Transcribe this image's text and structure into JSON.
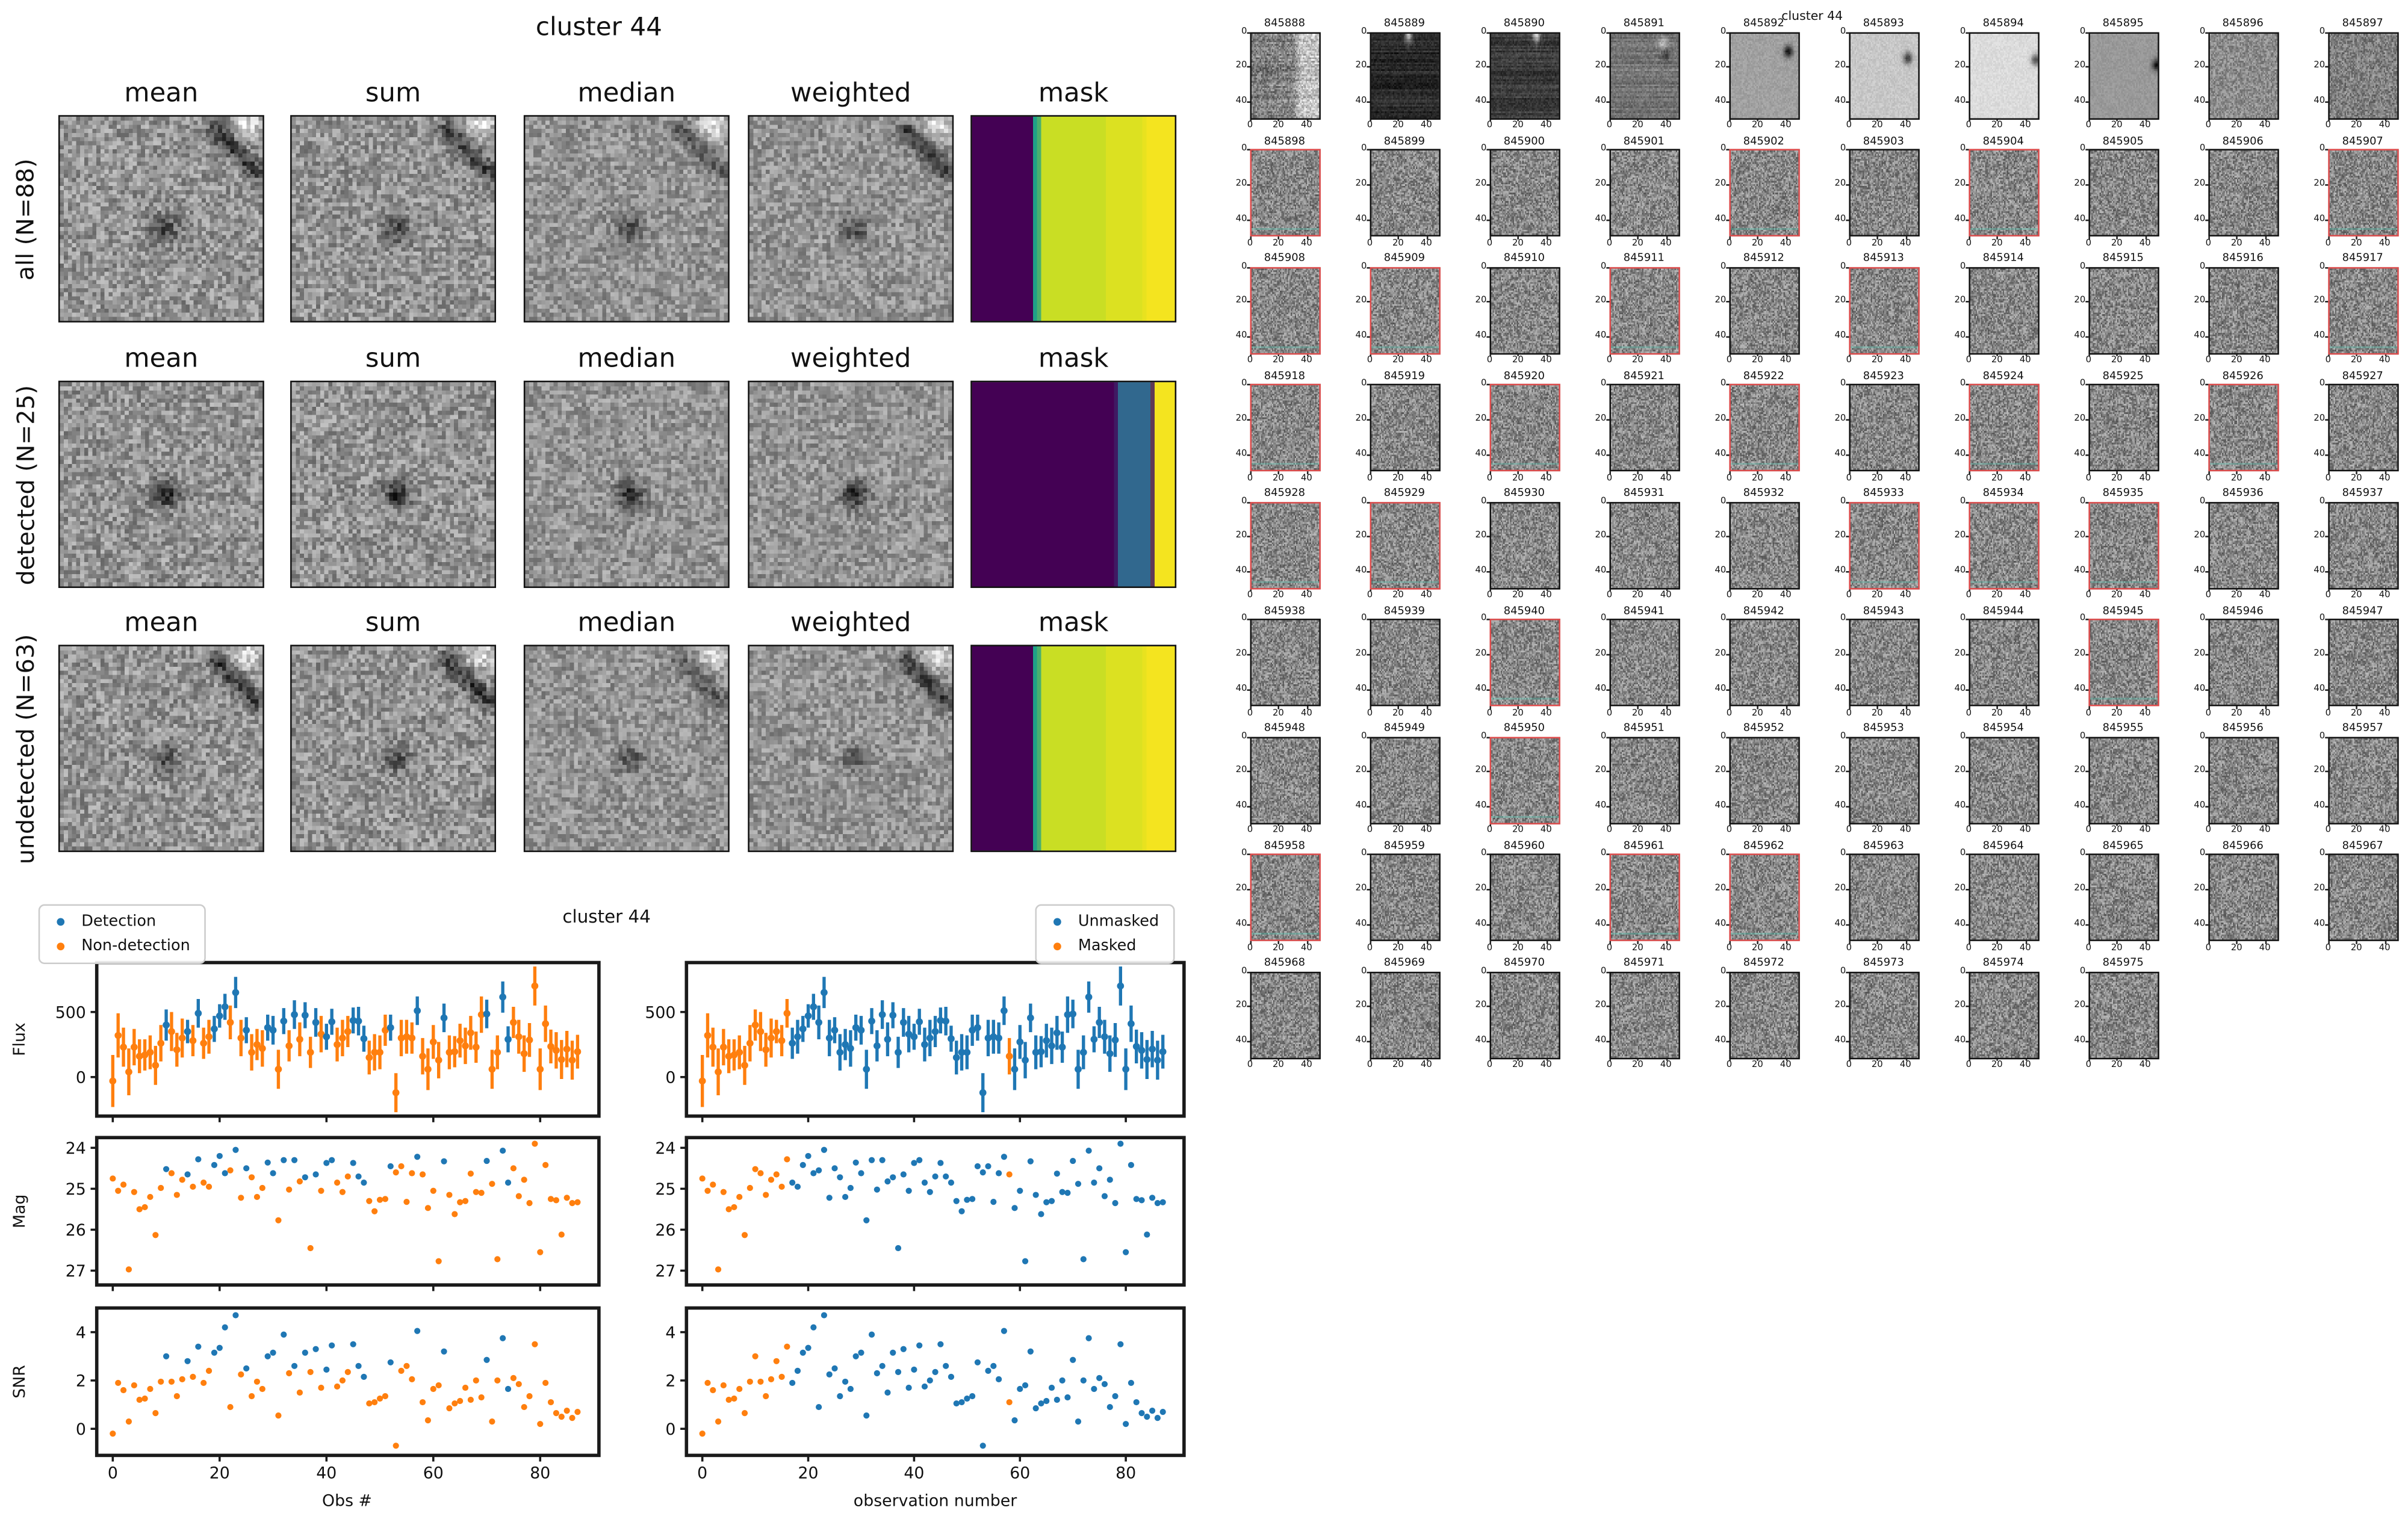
{
  "left_figure": {
    "title": "cluster 44",
    "col_headers": [
      "mean",
      "sum",
      "median",
      "weighted",
      "mask"
    ],
    "rows": [
      {
        "label": "all (N=88)"
      },
      {
        "label": "detected (N=25)"
      },
      {
        "label": "undetected (N=63)"
      }
    ],
    "masks": [
      [
        {
          "color": "#440154",
          "frac": 0.3
        },
        {
          "color": "#1fa187",
          "frac": 0.035
        },
        {
          "color": "#c9de24",
          "frac": 0.325
        },
        {
          "color": "#dce121",
          "frac": 0.19
        },
        {
          "color": "#f4e41f",
          "frac": 0.15
        }
      ],
      [
        {
          "color": "#440154",
          "frac": 0.715
        },
        {
          "color": "#31688e",
          "frac": 0.17
        },
        {
          "color": "#440154",
          "frac": 0.012
        },
        {
          "color": "#f4e41f",
          "frac": 0.103
        }
      ],
      [
        {
          "color": "#440154",
          "frac": 0.3
        },
        {
          "color": "#1fa187",
          "frac": 0.035
        },
        {
          "color": "#c9de24",
          "frac": 0.325
        },
        {
          "color": "#dce121",
          "frac": 0.19
        },
        {
          "color": "#f4e41f",
          "frac": 0.15
        }
      ]
    ]
  },
  "scatter_figure": {
    "title": "cluster 44",
    "xlabel_left": "Obs #",
    "xlabel_right": "observation number",
    "ylabels": [
      "Flux",
      "Mag",
      "SNR"
    ],
    "colors": {
      "blue": "#1f77b4",
      "orange": "#ff7f0e"
    },
    "legend_left": [
      {
        "label": "Detection",
        "color": "#1f77b4"
      },
      {
        "label": "Non-detection",
        "color": "#ff7f0e"
      }
    ],
    "legend_right": [
      {
        "label": "Unmasked",
        "color": "#1f77b4"
      },
      {
        "label": "Masked",
        "color": "#ff7f0e"
      }
    ]
  },
  "chart_data": {
    "type": "scatter",
    "n": 88,
    "x_is_index": true,
    "xlim": [
      -3,
      91
    ],
    "xticks": [
      0,
      20,
      40,
      60,
      80
    ],
    "panels": [
      {
        "name": "Flux",
        "yticks": [
          0,
          500
        ],
        "ylim": [
          -300,
          880
        ],
        "style": "errorbar"
      },
      {
        "name": "Mag",
        "yticks": [
          24,
          25,
          26,
          27
        ],
        "ylim": [
          23.75,
          27.35
        ],
        "inverted": true,
        "style": "dots"
      },
      {
        "name": "SNR",
        "yticks": [
          0,
          2,
          4
        ],
        "ylim": [
          -1.1,
          5.0
        ],
        "style": "dots"
      }
    ],
    "figures": [
      {
        "side": "left",
        "color_by": "detection",
        "xlabel": "Obs #",
        "legend": [
          "Detection",
          "Non-detection"
        ]
      },
      {
        "side": "right",
        "color_by": "mask",
        "xlabel": "observation number",
        "legend": [
          "Unmasked",
          "Masked"
        ]
      }
    ],
    "flux": [
      -30,
      320,
      230,
      40,
      230,
      160,
      170,
      190,
      90,
      260,
      400,
      350,
      210,
      300,
      350,
      280,
      490,
      260,
      310,
      370,
      470,
      540,
      420,
      650,
      300,
      360,
      190,
      250,
      220,
      380,
      360,
      60,
      430,
      240,
      480,
      290,
      475,
      190,
      420,
      330,
      310,
      425,
      250,
      300,
      350,
      435,
      430,
      295,
      150,
      190,
      190,
      360,
      380,
      -120,
      300,
      310,
      300,
      510,
      160,
      60,
      270,
      130,
      455,
      190,
      195,
      280,
      240,
      340,
      230,
      480,
      485,
      60,
      190,
      615,
      290,
      420,
      310,
      180,
      285,
      700,
      60,
      410,
      235,
      205,
      135,
      215,
      130,
      195
    ],
    "flux_err": [
      200,
      170,
      150,
      180,
      140,
      130,
      120,
      130,
      150,
      140,
      120,
      150,
      130,
      150,
      90,
      120,
      110,
      120,
      130,
      100,
      90,
      100,
      130,
      120,
      140,
      100,
      140,
      120,
      140,
      100,
      110,
      150,
      100,
      120,
      110,
      130,
      100,
      120,
      110,
      140,
      100,
      100,
      130,
      140,
      120,
      100,
      110,
      100,
      130,
      140,
      130,
      120,
      100,
      150,
      140,
      130,
      120,
      110,
      140,
      160,
      130,
      140,
      110,
      130,
      120,
      130,
      140,
      130,
      120,
      140,
      110,
      150,
      130,
      120,
      100,
      120,
      130,
      140,
      130,
      150,
      160,
      140,
      130,
      140,
      150,
      140,
      150,
      130
    ],
    "mag": [
      24.75,
      25.05,
      24.9,
      26.97,
      25.08,
      25.5,
      25.45,
      25.2,
      26.13,
      24.98,
      24.52,
      24.62,
      25.15,
      24.78,
      24.65,
      24.95,
      24.28,
      24.85,
      24.95,
      24.42,
      24.2,
      24.62,
      24.55,
      24.05,
      25.22,
      24.5,
      24.72,
      25.2,
      24.98,
      24.36,
      24.62,
      25.77,
      24.3,
      25.02,
      24.3,
      24.82,
      24.72,
      26.45,
      24.65,
      25.05,
      24.37,
      24.3,
      24.85,
      25.08,
      24.7,
      24.37,
      24.7,
      24.85,
      25.3,
      25.55,
      25.27,
      25.25,
      24.45,
      24.6,
      24.45,
      25.32,
      24.62,
      24.22,
      24.65,
      25.47,
      25.05,
      26.77,
      24.33,
      25.15,
      25.62,
      25.33,
      25.3,
      24.63,
      25.08,
      25.1,
      24.32,
      24.88,
      26.72,
      24.07,
      24.85,
      24.5,
      25.18,
      24.78,
      25.35,
      23.9,
      26.55,
      24.42,
      25.25,
      25.28,
      26.12,
      25.22,
      25.35,
      25.33
    ],
    "snr": [
      -0.2,
      1.9,
      1.6,
      0.3,
      1.8,
      1.2,
      1.25,
      1.65,
      0.65,
      1.95,
      3.0,
      1.95,
      1.35,
      2.05,
      2.8,
      2.15,
      3.4,
      1.9,
      2.4,
      3.15,
      3.35,
      4.2,
      0.9,
      4.7,
      2.25,
      2.5,
      1.35,
      1.95,
      1.65,
      3.0,
      3.15,
      0.55,
      3.9,
      2.3,
      2.6,
      1.5,
      3.15,
      2.35,
      3.3,
      1.7,
      2.45,
      3.45,
      1.75,
      2.0,
      2.35,
      3.5,
      2.6,
      2.15,
      1.05,
      1.1,
      1.25,
      1.35,
      2.75,
      -0.7,
      2.4,
      2.6,
      2.05,
      4.05,
      1.1,
      0.35,
      1.65,
      1.8,
      3.2,
      0.85,
      1.05,
      1.15,
      1.7,
      1.2,
      2.0,
      1.3,
      2.85,
      0.3,
      2.0,
      3.75,
      1.65,
      2.1,
      1.85,
      0.9,
      1.35,
      3.5,
      0.2,
      1.9,
      1.1,
      0.65,
      0.5,
      0.75,
      0.45,
      0.7
    ],
    "detected_idx": [
      10,
      14,
      16,
      19,
      20,
      21,
      23,
      25,
      29,
      30,
      32,
      34,
      36,
      38,
      40,
      41,
      45,
      46,
      47,
      52,
      57,
      62,
      70,
      73,
      74
    ],
    "masked_idx": [
      0,
      1,
      2,
      3,
      4,
      5,
      6,
      7,
      8,
      9,
      10,
      11,
      12,
      13,
      14,
      15,
      16,
      58
    ]
  },
  "thumbs_figure": {
    "title": "cluster 44",
    "tick_labels": [
      "0",
      "20",
      "40"
    ],
    "ids": [
      "845888",
      "845889",
      "845890",
      "845891",
      "845892",
      "845893",
      "845894",
      "845895",
      "845896",
      "845897",
      "845898",
      "845899",
      "845900",
      "845901",
      "845902",
      "845903",
      "845904",
      "845905",
      "845906",
      "845907",
      "845908",
      "845909",
      "845910",
      "845911",
      "845912",
      "845913",
      "845914",
      "845915",
      "845916",
      "845917",
      "845918",
      "845919",
      "845920",
      "845921",
      "845922",
      "845923",
      "845924",
      "845925",
      "845926",
      "845927",
      "845928",
      "845929",
      "845930",
      "845931",
      "845932",
      "845933",
      "845934",
      "845935",
      "845936",
      "845937",
      "845938",
      "845939",
      "845940",
      "845941",
      "845942",
      "845943",
      "845944",
      "845945",
      "845946",
      "845947",
      "845948",
      "845949",
      "845950",
      "845951",
      "845952",
      "845953",
      "845954",
      "845955",
      "845956",
      "845957",
      "845958",
      "845959",
      "845960",
      "845961",
      "845962",
      "845963",
      "845964",
      "845965",
      "845966",
      "845967",
      "845968",
      "845969",
      "845970",
      "845971",
      "845972",
      "845973",
      "845974",
      "845975"
    ],
    "red_ids": [
      "845898",
      "845902",
      "845904",
      "845907",
      "845908",
      "845909",
      "845911",
      "845913",
      "845917",
      "845918",
      "845920",
      "845922",
      "845924",
      "845926",
      "845928",
      "845929",
      "845933",
      "845934",
      "845935",
      "845940",
      "845945",
      "845950",
      "845958",
      "845961",
      "845962"
    ],
    "variants": {
      "845888": {
        "bg": 0.5,
        "contrast": 0.17,
        "rightLight": true,
        "streaky": true
      },
      "845889": {
        "bg": 0.16,
        "contrast": 0.06,
        "topStreak": 27,
        "streaky": true
      },
      "845890": {
        "bg": 0.22,
        "contrast": 0.07,
        "topStreak": 33,
        "streaky": true
      },
      "845891": {
        "bg": 0.46,
        "contrast": 0.08,
        "smudge": true,
        "streaky": true
      },
      "845892": {
        "bg": 0.63,
        "contrast": 0.05,
        "blob": [
          42,
          10
        ]
      },
      "845893": {
        "bg": 0.78,
        "contrast": 0.05,
        "blob": [
          42,
          14
        ]
      },
      "845894": {
        "bg": 0.86,
        "contrast": 0.04,
        "blob": [
          48,
          15
        ]
      },
      "845895": {
        "bg": 0.6,
        "contrast": 0.04,
        "blob": [
          49,
          18
        ]
      },
      "845896": {
        "bg": 0.55,
        "contrast": 0.14
      },
      "845897": {
        "bg": 0.5,
        "contrast": 0.16
      }
    }
  }
}
